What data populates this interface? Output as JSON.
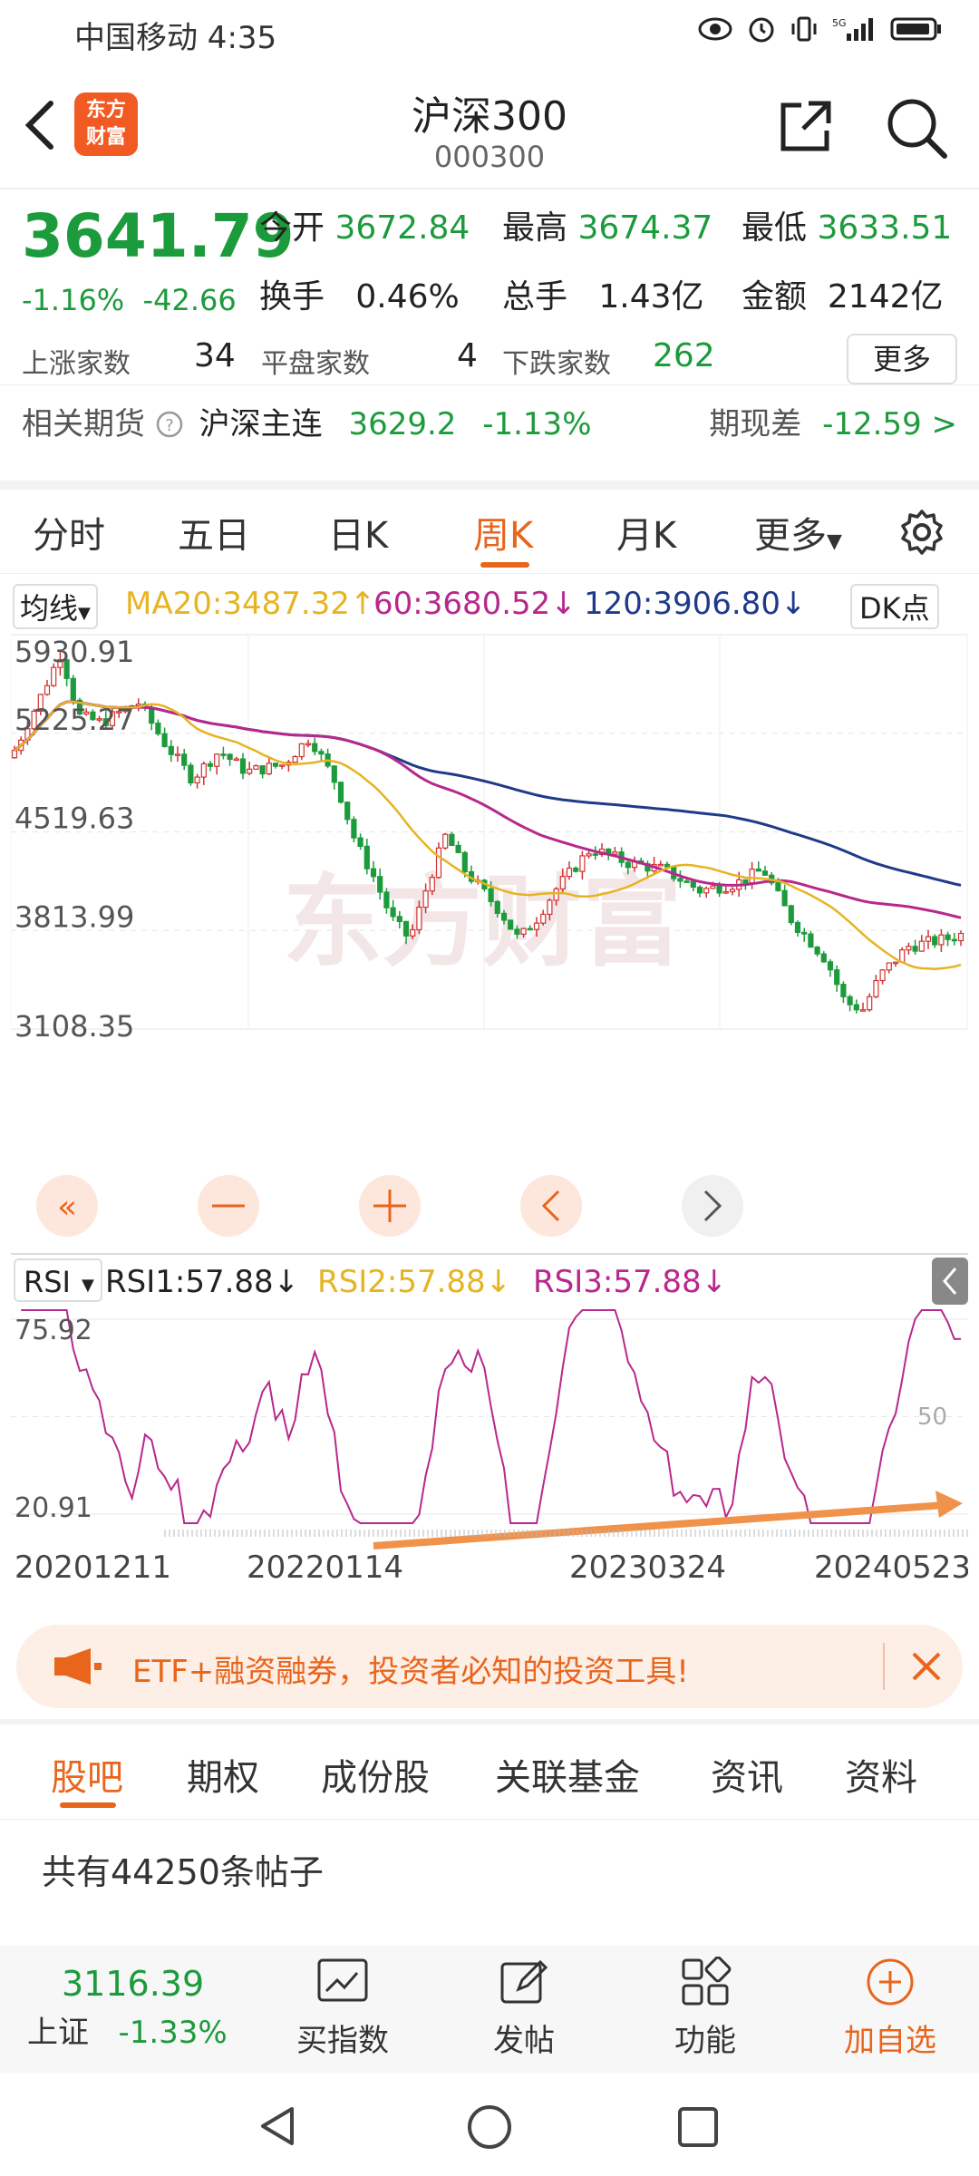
{
  "status": {
    "carrier_time": "中国移动 4:35"
  },
  "nav": {
    "logo_line1": "东方",
    "logo_line2": "财富",
    "title": "沪深300",
    "code": "000300"
  },
  "quote": {
    "price": "3641.79",
    "change_pct": "-1.16%",
    "change_abs": "-42.66",
    "open_label": "今开",
    "open": "3672.84",
    "high_label": "最高",
    "high": "3674.37",
    "low_label": "最低",
    "low": "3633.51",
    "turnover_label": "换手",
    "turnover": "0.46%",
    "volume_label": "总手",
    "volume": "1.43亿",
    "amount_label": "金额",
    "amount": "2142亿",
    "up_label": "上涨家数",
    "up": "34",
    "flat_label": "平盘家数",
    "flat": "4",
    "down_label": "下跌家数",
    "down": "262",
    "more": "更多"
  },
  "futures": {
    "label": "相关期货",
    "name": "沪深主连",
    "price": "3629.2",
    "pct": "-1.13%",
    "basis_label": "期现差",
    "basis": "-12.59 >"
  },
  "tabs": [
    "分时",
    "五日",
    "日K",
    "周K",
    "月K",
    "更多"
  ],
  "active_tab": 3,
  "ma": {
    "label": "均线",
    "ma20": "MA20:3487.32↑",
    "ma60": "60:3680.52↓",
    "ma120": "120:3906.80↓",
    "dk": "DK点"
  },
  "chart_data": {
    "type": "candlestick",
    "y_labels": [
      "5930.91",
      "5225.27",
      "4519.63",
      "3813.99",
      "3108.35"
    ],
    "ylim": [
      3108.35,
      5930.91
    ],
    "rsi_label": "RSI",
    "rsi1": "RSI1:57.88↓",
    "rsi2": "RSI2:57.88↓",
    "rsi3": "RSI3:57.88↓",
    "rsi_y_labels": [
      "75.92",
      "20.91"
    ],
    "rsi_mid": "50",
    "x_labels": [
      "20201211",
      "20220114",
      "20230324",
      "20240523"
    ],
    "ma20_color": "#e6b422",
    "ma60_color": "#b8288c",
    "ma120_color": "#1f3a8a"
  },
  "banner": {
    "text": "ETF+融资融券，投资者必知的投资工具!"
  },
  "lower_tabs": [
    "股吧",
    "期权",
    "成份股",
    "关联基金",
    "资讯",
    "资料"
  ],
  "posts": "共有44250条帖子",
  "bottom": {
    "sh_price": "3116.39",
    "sh_label": "上证",
    "sh_pct": "-1.33%",
    "buy_index": "买指数",
    "post": "发帖",
    "func": "功能",
    "add": "加自选"
  }
}
